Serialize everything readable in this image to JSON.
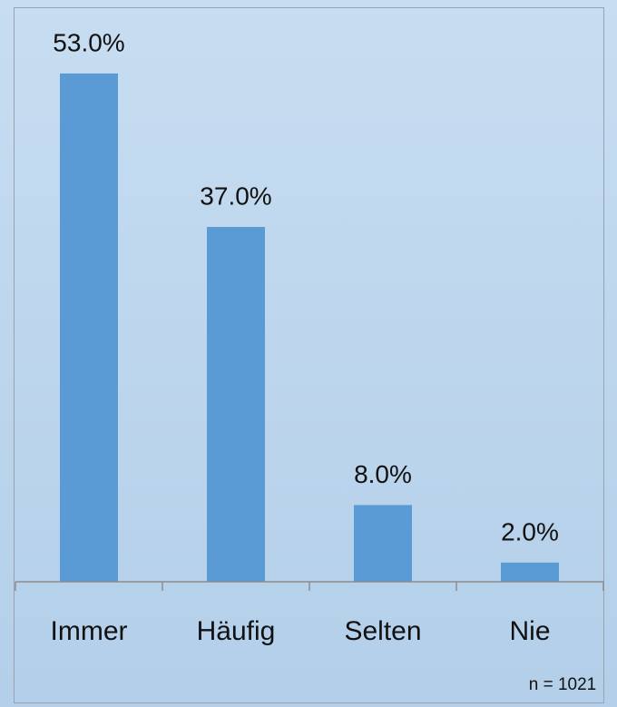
{
  "chart_data": {
    "type": "bar",
    "categories": [
      "Immer",
      "Häufig",
      "Selten",
      "Nie"
    ],
    "values": [
      53,
      37,
      8,
      2
    ],
    "value_labels": [
      "53.0%",
      "37.0%",
      "8.0%",
      "2.0%"
    ],
    "color": "#5b9bd5",
    "ylim": [
      0,
      60
    ],
    "annotation": "n = 1021"
  }
}
